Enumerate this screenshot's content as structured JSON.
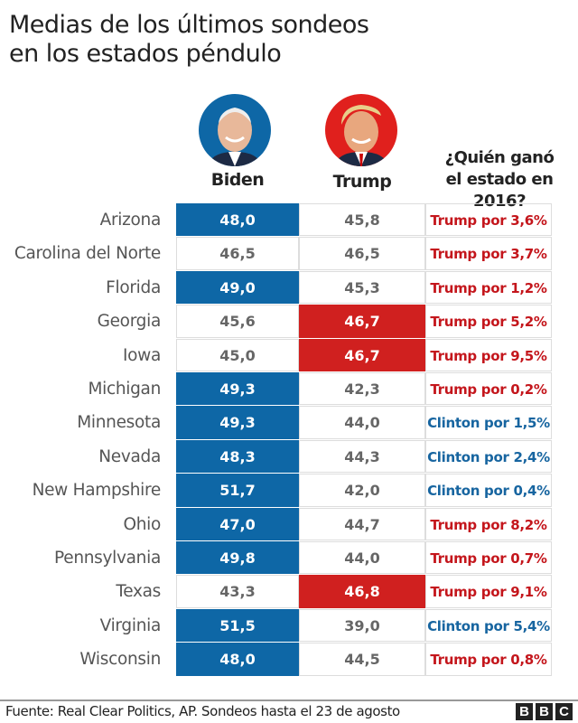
{
  "chart_data": {
    "type": "table",
    "title": "Medias de los últimos sondeos en los estados péndulo",
    "title_lines": [
      "Medias de los últimos sondeos",
      "en los estados péndulo"
    ],
    "columns": [
      "Biden",
      "Trump"
    ],
    "result_header_lines": [
      "¿Quién ganó",
      "el estado en 2016?"
    ],
    "rows": [
      {
        "state": "Arizona",
        "biden": "48,0",
        "trump": "45,8",
        "result": "Trump por 3,6%",
        "winner": "Trump"
      },
      {
        "state": "Carolina del Norte",
        "biden": "46,5",
        "trump": "46,5",
        "result": "Trump por 3,7%",
        "winner": "Trump"
      },
      {
        "state": "Florida",
        "biden": "49,0",
        "trump": "45,3",
        "result": "Trump por 1,2%",
        "winner": "Trump"
      },
      {
        "state": "Georgia",
        "biden": "45,6",
        "trump": "46,7",
        "result": "Trump por 5,2%",
        "winner": "Trump"
      },
      {
        "state": "Iowa",
        "biden": "45,0",
        "trump": "46,7",
        "result": "Trump por 9,5%",
        "winner": "Trump"
      },
      {
        "state": "Michigan",
        "biden": "49,3",
        "trump": "42,3",
        "result": "Trump por 0,2%",
        "winner": "Trump"
      },
      {
        "state": "Minnesota",
        "biden": "49,3",
        "trump": "44,0",
        "result": "Clinton por 1,5%",
        "winner": "Clinton"
      },
      {
        "state": "Nevada",
        "biden": "48,3",
        "trump": "44,3",
        "result": "Clinton por 2,4%",
        "winner": "Clinton"
      },
      {
        "state": "New Hampshire",
        "biden": "51,7",
        "trump": "42,0",
        "result": "Clinton por 0,4%",
        "winner": "Clinton"
      },
      {
        "state": "Ohio",
        "biden": "47,0",
        "trump": "44,7",
        "result": "Trump por 8,2%",
        "winner": "Trump"
      },
      {
        "state": "Pennsylvania",
        "biden": "49,8",
        "trump": "44,0",
        "result": "Trump por 0,7%",
        "winner": "Trump"
      },
      {
        "state": "Texas",
        "biden": "43,3",
        "trump": "46,8",
        "result": "Trump por 9,1%",
        "winner": "Trump"
      },
      {
        "state": "Virginia",
        "biden": "51,5",
        "trump": "39,0",
        "result": "Clinton por 5,4%",
        "winner": "Clinton"
      },
      {
        "state": "Wisconsin",
        "biden": "48,0",
        "trump": "44,5",
        "result": "Trump por 0,8%",
        "winner": "Trump"
      }
    ],
    "colors": {
      "biden": "#0e67a6",
      "trump": "#d0201f",
      "trump_text": "#c4161c",
      "clinton_text": "#1765a0",
      "neutral_text": "#666666"
    }
  },
  "footer": {
    "source": "Fuente: Real Clear Politics, AP. Sondeos hasta el 23 de agosto",
    "logo_letters": [
      "B",
      "B",
      "C"
    ]
  }
}
